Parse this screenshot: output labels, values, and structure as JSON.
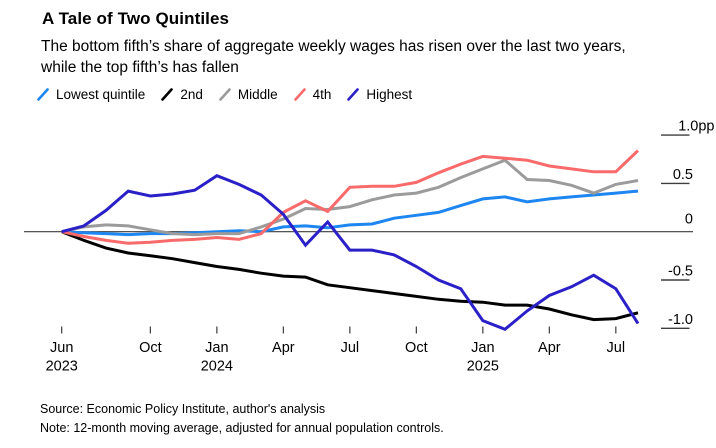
{
  "header": {
    "title": "A Tale of Two Quintiles",
    "subtitle": "The bottom fifth’s share of aggregate weekly wages has risen over the last two years, while the top fifth’s has fallen"
  },
  "legend": {
    "items": [
      {
        "label": "Lowest quintile",
        "color": "#1e86f0"
      },
      {
        "label": "2nd",
        "color": "#000000"
      },
      {
        "label": "Middle",
        "color": "#9b9b9b"
      },
      {
        "label": "4th",
        "color": "#f96a6b"
      },
      {
        "label": "Highest",
        "color": "#2b20c8"
      }
    ]
  },
  "chart_data": {
    "type": "line",
    "unit": "pp",
    "title": "A Tale of Two Quintiles",
    "x_months": [
      "Jun 2023",
      "Jul 2023",
      "Aug 2023",
      "Sep 2023",
      "Oct 2023",
      "Nov 2023",
      "Dec 2023",
      "Jan 2024",
      "Feb 2024",
      "Mar 2024",
      "Apr 2024",
      "May 2024",
      "Jun 2024",
      "Jul 2024",
      "Aug 2024",
      "Sep 2024",
      "Oct 2024",
      "Nov 2024",
      "Dec 2024",
      "Jan 2025",
      "Feb 2025",
      "Mar 2025",
      "Apr 2025",
      "May 2025",
      "Jun 2025",
      "Jul 2025",
      "Aug 2025"
    ],
    "series": [
      {
        "name": "Lowest quintile",
        "color": "#1e86f0",
        "values": [
          0,
          -0.01,
          -0.02,
          -0.03,
          -0.02,
          -0.02,
          -0.01,
          0,
          0.01,
          0,
          0.05,
          0.06,
          0.04,
          0.07,
          0.08,
          0.14,
          0.17,
          0.2,
          0.27,
          0.34,
          0.36,
          0.31,
          0.34,
          0.36,
          0.38,
          0.4,
          0.42
        ]
      },
      {
        "name": "2nd",
        "color": "#000000",
        "values": [
          0,
          -0.09,
          -0.17,
          -0.22,
          -0.25,
          -0.28,
          -0.32,
          -0.36,
          -0.39,
          -0.43,
          -0.46,
          -0.47,
          -0.55,
          -0.58,
          -0.61,
          -0.64,
          -0.67,
          -0.7,
          -0.72,
          -0.73,
          -0.76,
          -0.76,
          -0.8,
          -0.86,
          -0.91,
          -0.9,
          -0.84
        ]
      },
      {
        "name": "Middle",
        "color": "#9b9b9b",
        "values": [
          0,
          0.05,
          0.07,
          0.06,
          0.02,
          -0.02,
          -0.03,
          -0.02,
          -0.02,
          0.05,
          0.13,
          0.24,
          0.23,
          0.26,
          0.33,
          0.38,
          0.4,
          0.46,
          0.56,
          0.65,
          0.74,
          0.54,
          0.53,
          0.48,
          0.4,
          0.49,
          0.53
        ]
      },
      {
        "name": "4th",
        "color": "#f96a6b",
        "values": [
          0,
          -0.05,
          -0.09,
          -0.12,
          -0.11,
          -0.09,
          -0.08,
          -0.06,
          -0.08,
          -0.02,
          0.2,
          0.32,
          0.21,
          0.46,
          0.47,
          0.47,
          0.51,
          0.61,
          0.7,
          0.78,
          0.76,
          0.74,
          0.68,
          0.65,
          0.62,
          0.62,
          0.84
        ]
      },
      {
        "name": "Highest",
        "color": "#2b20c8",
        "values": [
          0,
          0.06,
          0.22,
          0.42,
          0.37,
          0.39,
          0.43,
          0.58,
          0.49,
          0.38,
          0.18,
          -0.14,
          0.1,
          -0.19,
          -0.19,
          -0.24,
          -0.36,
          -0.5,
          -0.59,
          -0.92,
          -1.01,
          -0.82,
          -0.66,
          -0.57,
          -0.45,
          -0.59,
          -0.95
        ]
      }
    ],
    "ylim": [
      -1.15,
      1.05
    ],
    "yticks": [
      {
        "value": 1.0,
        "label": "1.0",
        "suffix": "pp"
      },
      {
        "value": 0.5,
        "label": "0.5"
      },
      {
        "value": 0,
        "label": "0"
      },
      {
        "value": -0.5,
        "label": "-0.5"
      },
      {
        "value": -1.0,
        "label": "-1.0"
      }
    ],
    "xticks": [
      {
        "month_index": 0,
        "label": "Jun",
        "year": "2023"
      },
      {
        "month_index": 4,
        "label": "Oct"
      },
      {
        "month_index": 7,
        "label": "Jan",
        "year": "2024"
      },
      {
        "month_index": 10,
        "label": "Apr"
      },
      {
        "month_index": 13,
        "label": "Jul"
      },
      {
        "month_index": 16,
        "label": "Oct"
      },
      {
        "month_index": 19,
        "label": "Jan",
        "year": "2025"
      },
      {
        "month_index": 22,
        "label": "Apr"
      },
      {
        "month_index": 25,
        "label": "Jul"
      }
    ],
    "grid": false,
    "zero_line": true,
    "legend_position": "top"
  },
  "footer": {
    "source": "Source: Economic Policy Institute, author's analysis",
    "note": "Note: 12-month moving average, adjusted for annual population controls."
  }
}
